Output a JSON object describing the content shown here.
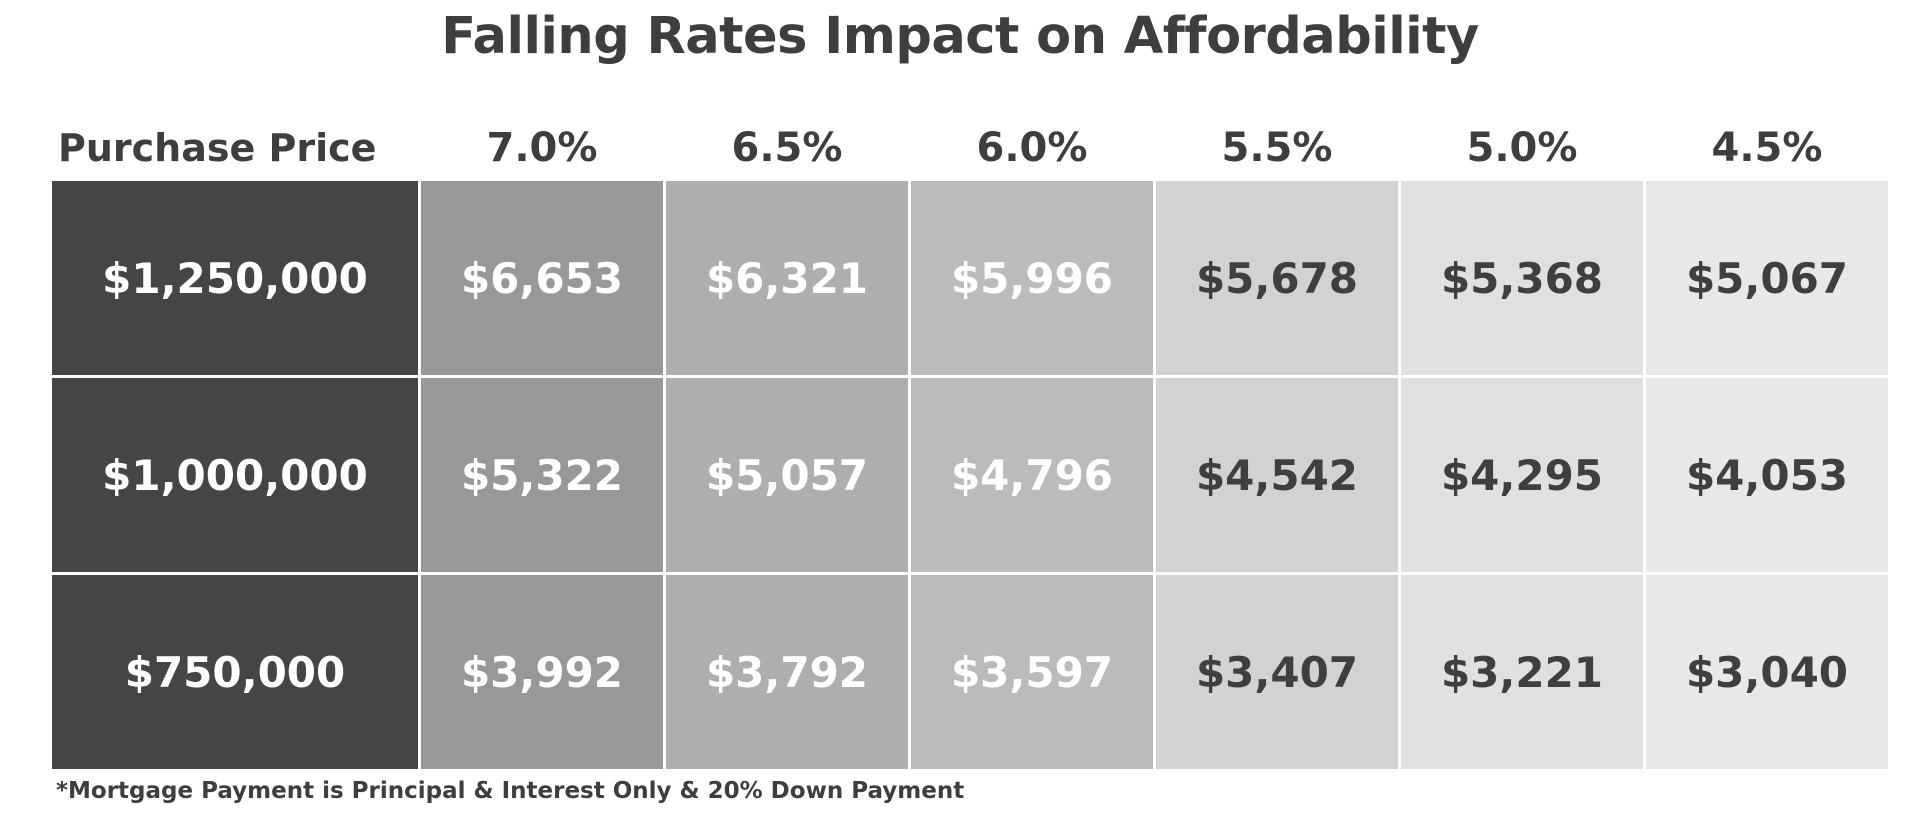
{
  "title": "Falling Rates Impact on Affordability",
  "footnote": "*Mortgage Payment is Principal & Interest Only & 20% Down Payment",
  "colors": {
    "price_bg": "#454545",
    "rate_bg": [
      "#989898",
      "#aeaeae",
      "#bbbbbb",
      "#d2d2d2",
      "#e0e0e0",
      "#e8e8e8"
    ],
    "light_text": "#ffffff",
    "dark_text": "#3f3f3f"
  },
  "chart_data": {
    "type": "table",
    "title": "Falling Rates Impact on Affordability",
    "row_header_label": "Purchase Price",
    "columns": [
      "7.0%",
      "6.5%",
      "6.0%",
      "5.5%",
      "5.0%",
      "4.5%"
    ],
    "rows": [
      {
        "price": "$1,250,000",
        "values": [
          "$6,653",
          "$6,321",
          "$5,996",
          "$5,678",
          "$5,368",
          "$5,067"
        ]
      },
      {
        "price": "$1,000,000",
        "values": [
          "$5,322",
          "$5,057",
          "$4,796",
          "$4,542",
          "$4,295",
          "$4,053"
        ]
      },
      {
        "price": "$750,000",
        "values": [
          "$3,992",
          "$3,792",
          "$3,597",
          "$3,407",
          "$3,221",
          "$3,040"
        ]
      }
    ]
  }
}
